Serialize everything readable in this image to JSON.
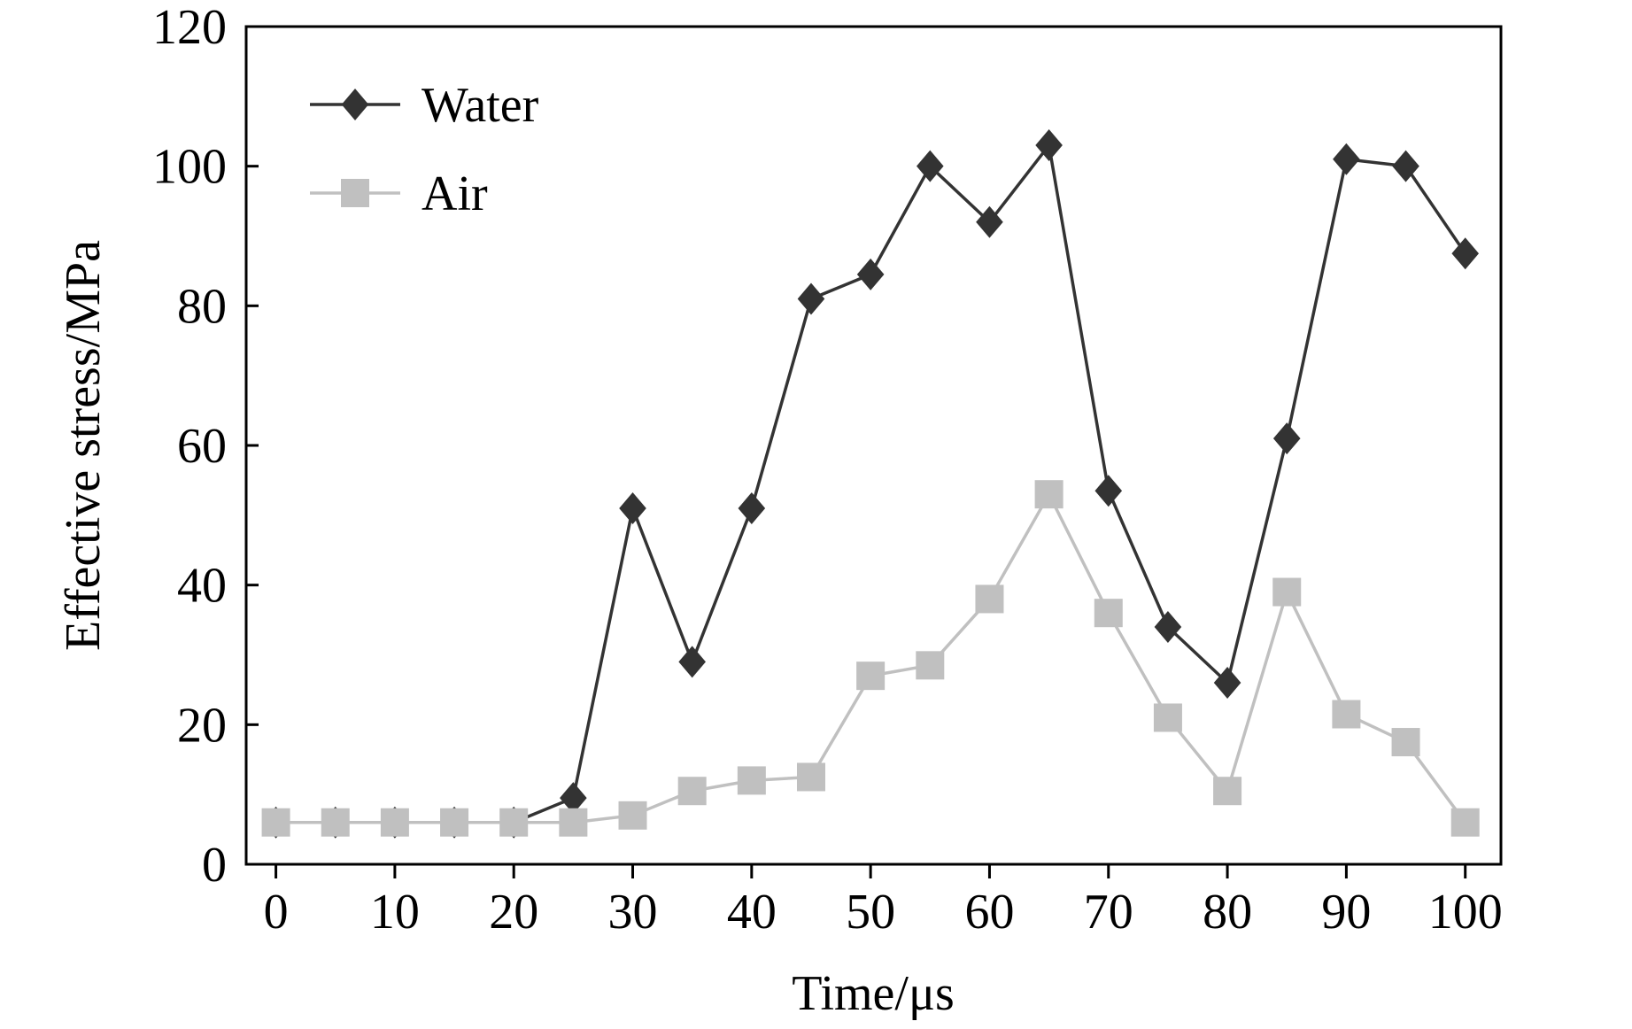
{
  "chart_data": {
    "type": "line",
    "title": "",
    "xlabel": "Time/μs",
    "ylabel": "Effective stress/MPa",
    "xlim": [
      -2.5,
      103
    ],
    "ylim": [
      0,
      120
    ],
    "x_ticks": [
      0,
      10,
      20,
      30,
      40,
      50,
      60,
      70,
      80,
      90,
      100
    ],
    "y_ticks": [
      0,
      20,
      40,
      60,
      80,
      100,
      120
    ],
    "x_tick_labels": [
      "0",
      "10",
      "20",
      "30",
      "40",
      "50",
      "60",
      "70",
      "80",
      "90",
      "100"
    ],
    "y_tick_labels": [
      "0",
      "20",
      "40",
      "60",
      "80",
      "100",
      "120"
    ],
    "grid": false,
    "legend_position": "top-left",
    "x": [
      0,
      5,
      10,
      15,
      20,
      25,
      30,
      35,
      40,
      45,
      50,
      55,
      60,
      65,
      70,
      75,
      80,
      85,
      90,
      95,
      100
    ],
    "series": [
      {
        "name": "Water",
        "marker": "diamond",
        "color": "#333333",
        "values": [
          6,
          6,
          6,
          6,
          6,
          9.5,
          51,
          29,
          51,
          81,
          84.5,
          100,
          92,
          103,
          53.5,
          34,
          26,
          61,
          101,
          100,
          87.5
        ]
      },
      {
        "name": "Air",
        "marker": "square",
        "color": "#c0c0c0",
        "values": [
          6,
          6,
          6,
          6,
          6,
          6,
          7,
          10.5,
          12,
          12.5,
          27,
          28.5,
          38,
          53,
          36,
          21,
          10.5,
          39,
          21.5,
          17.5,
          6
        ]
      }
    ]
  }
}
